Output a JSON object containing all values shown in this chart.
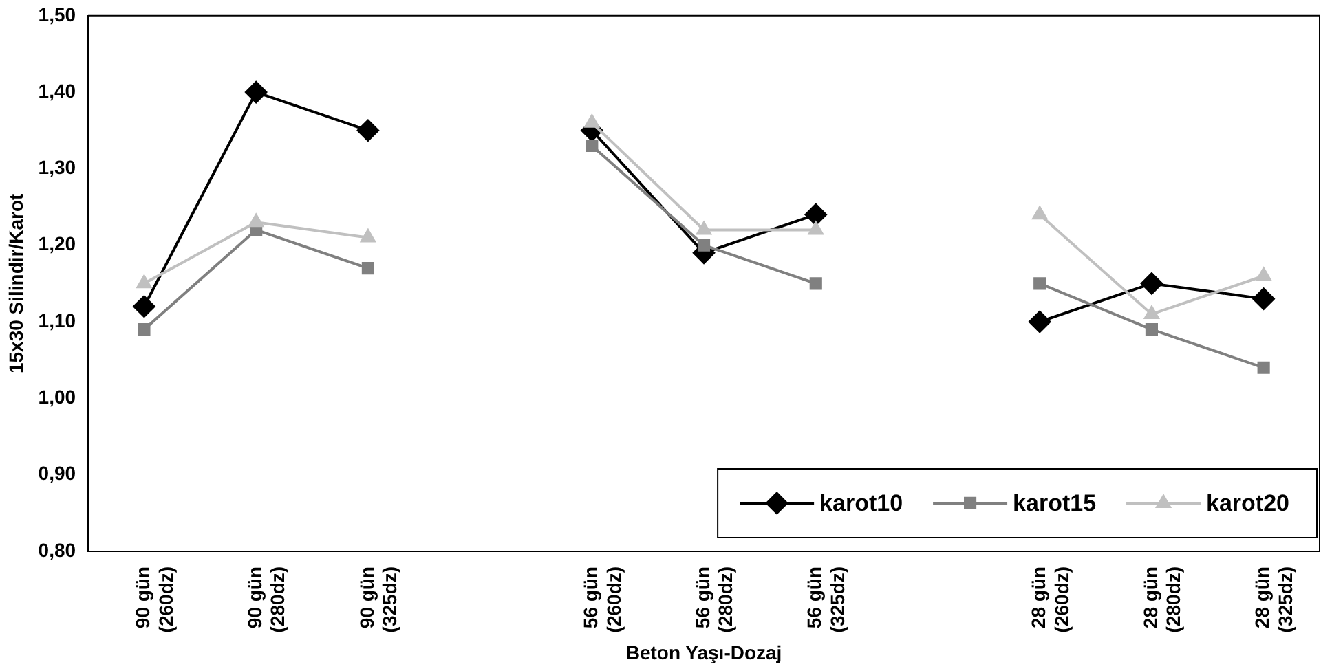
{
  "chart_data": {
    "type": "line",
    "xlabel": "Beton Yaşı-Dozaj",
    "ylabel": "15x30 Silindir/Karot",
    "categories": [
      "90 gün (260dz)",
      "90 gün (280dz)",
      "90 gün (325dz)",
      null,
      "56 gün (260dz)",
      "56 gün (280dz)",
      "56 gün (325dz)",
      null,
      "28 gün (260dz)",
      "28 gün (280dz)",
      "28 gün (325dz)"
    ],
    "ylim": [
      0.8,
      1.5
    ],
    "yticks": [
      {
        "value": 0.8,
        "label": "0,80"
      },
      {
        "value": 0.9,
        "label": "0,90"
      },
      {
        "value": 1.0,
        "label": "1,00"
      },
      {
        "value": 1.1,
        "label": "1,10"
      },
      {
        "value": 1.2,
        "label": "1,20"
      },
      {
        "value": 1.3,
        "label": "1,30"
      },
      {
        "value": 1.4,
        "label": "1,40"
      },
      {
        "value": 1.5,
        "label": "1,50"
      }
    ],
    "grid": false,
    "legend": "bottom right",
    "series": [
      {
        "name": "karot10",
        "color": "#000000",
        "marker": "diamond",
        "values": [
          1.12,
          1.4,
          1.35,
          null,
          1.35,
          1.19,
          1.24,
          null,
          1.1,
          1.15,
          1.13
        ]
      },
      {
        "name": "karot15",
        "color": "#808080",
        "marker": "square",
        "values": [
          1.09,
          1.22,
          1.17,
          null,
          1.33,
          1.2,
          1.15,
          null,
          1.15,
          1.09,
          1.04
        ]
      },
      {
        "name": "karot20",
        "color": "#c0c0c0",
        "marker": "triangle",
        "values": [
          1.15,
          1.23,
          1.21,
          null,
          1.36,
          1.22,
          1.22,
          null,
          1.24,
          1.11,
          1.16
        ]
      }
    ]
  }
}
